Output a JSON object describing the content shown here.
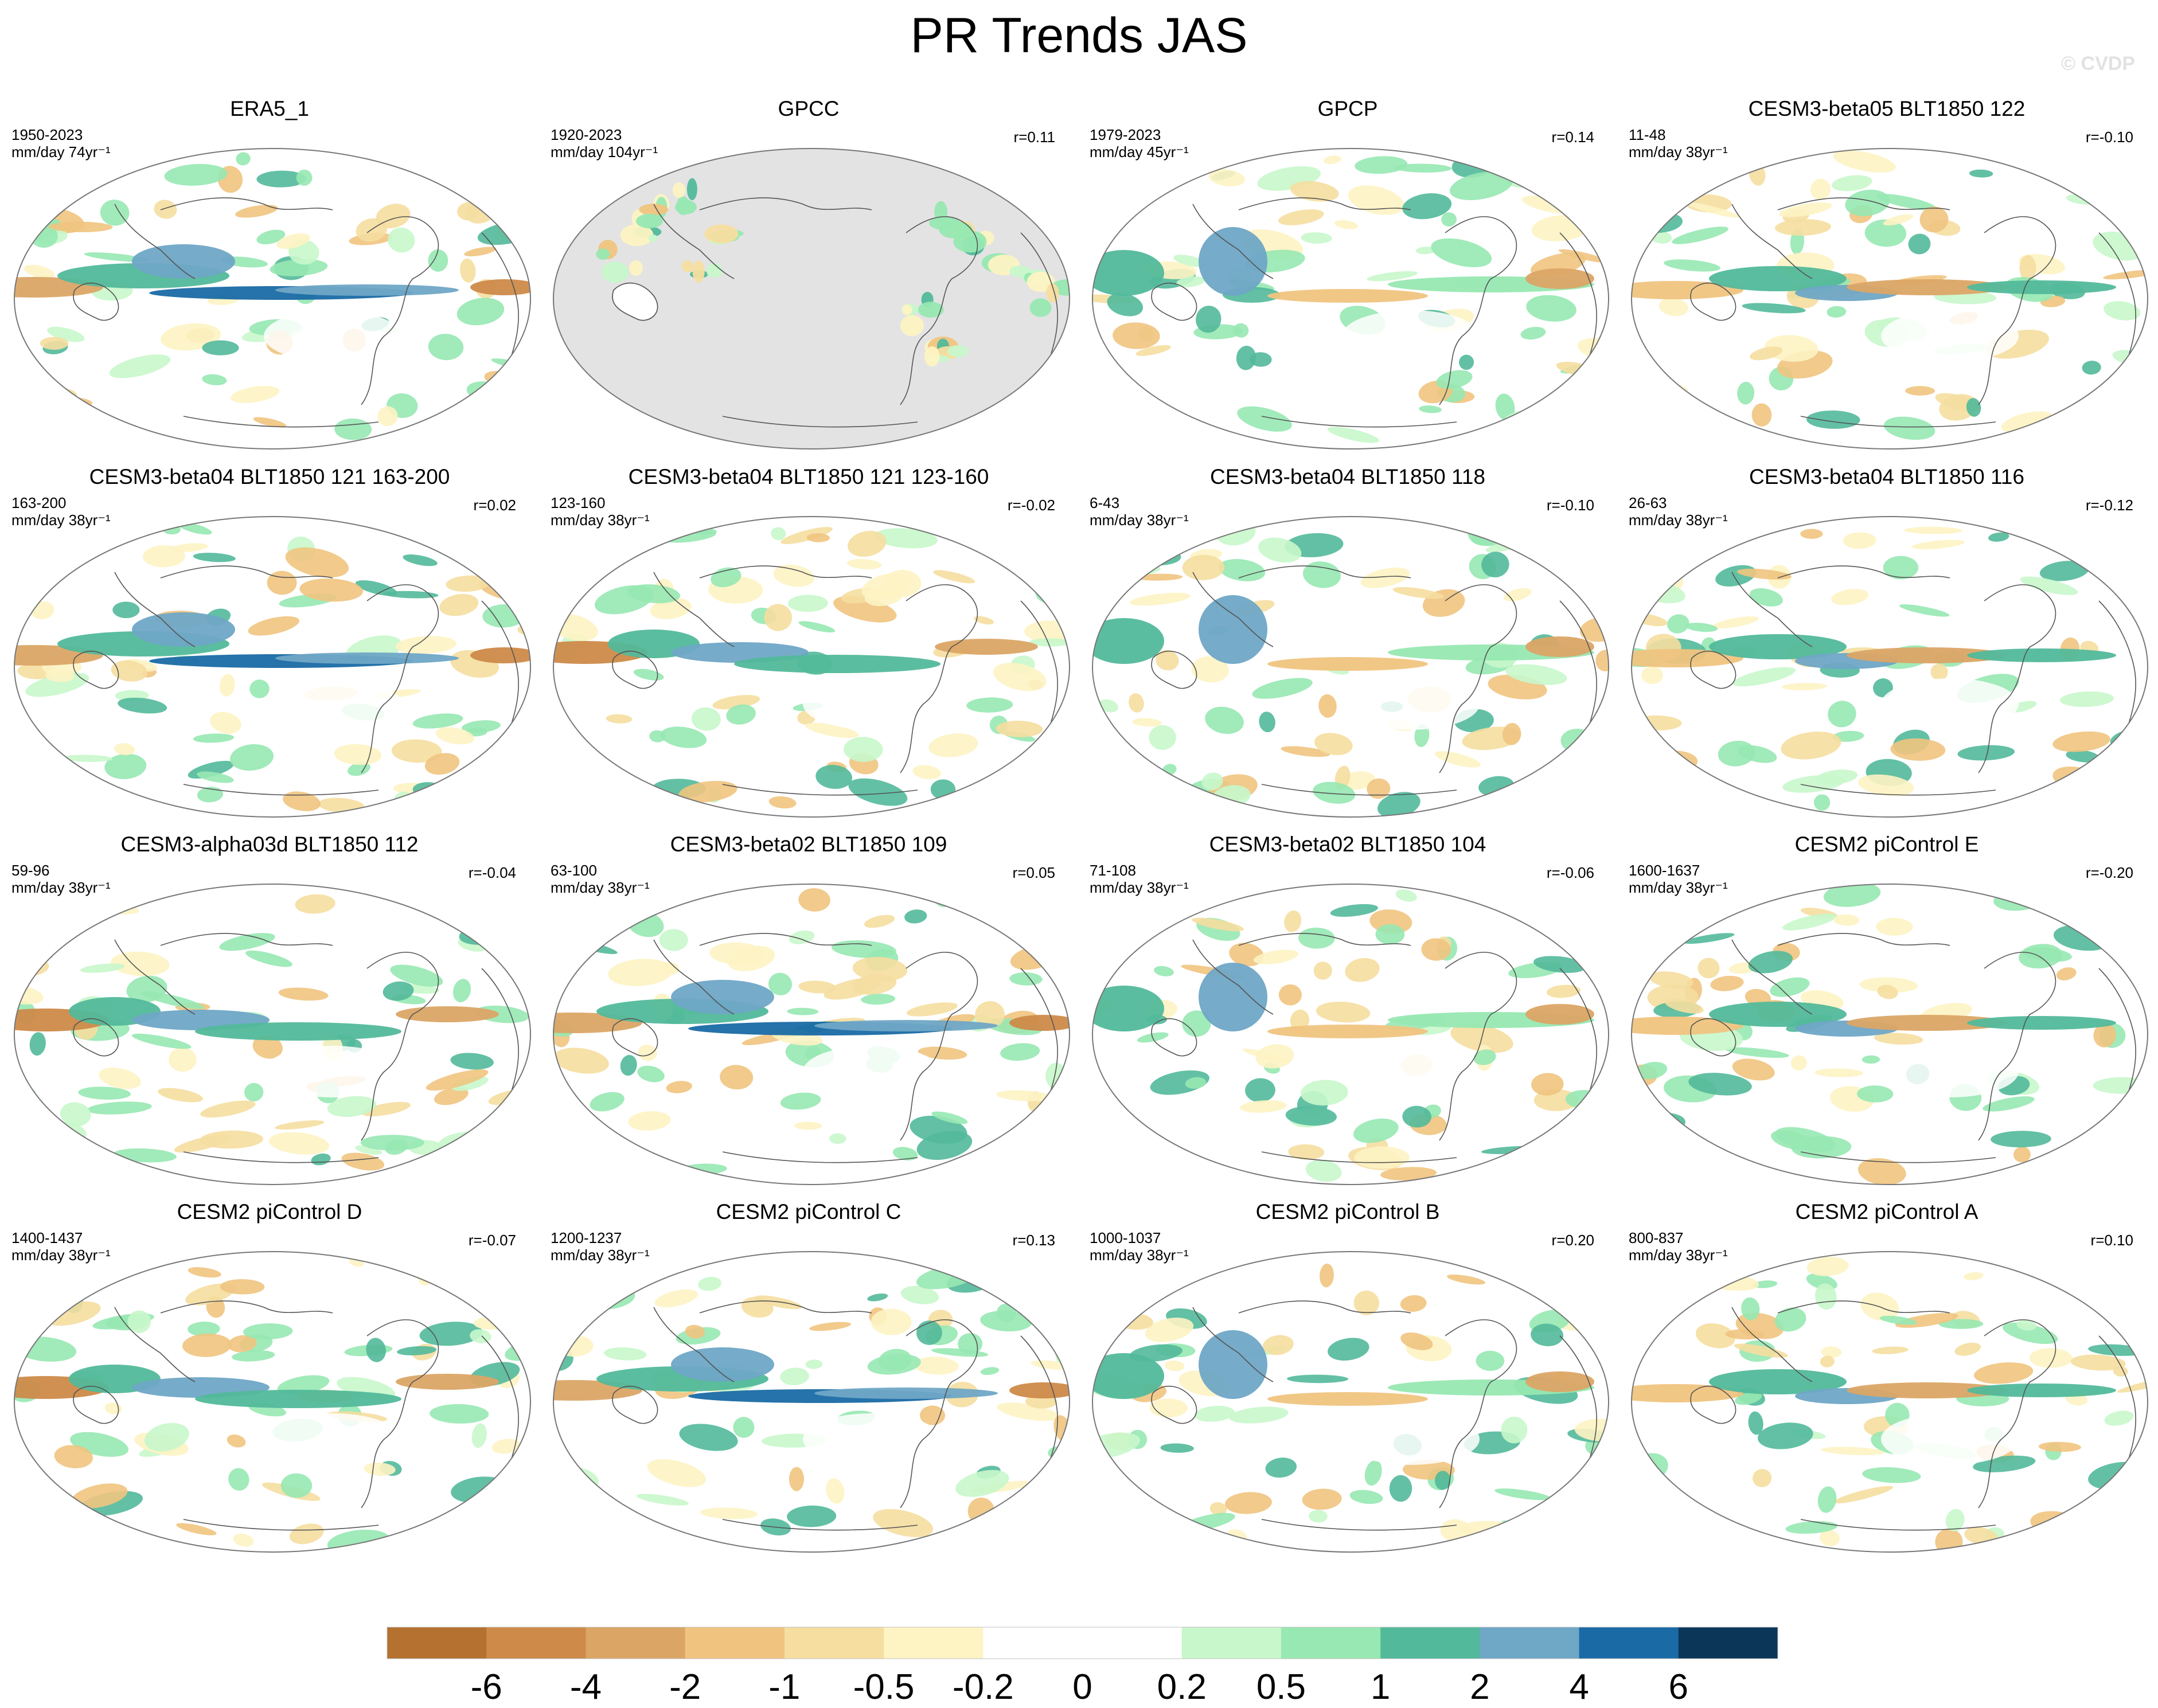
{
  "title": "PR Trends JAS",
  "watermark": "© CVDP",
  "panels": [
    {
      "title": "ERA5_1",
      "years": "1950-2023",
      "units": "mm/day 74yr⁻¹",
      "r": "",
      "pattern": "a",
      "masked": false
    },
    {
      "title": "GPCC",
      "years": "1920-2023",
      "units": "mm/day 104yr⁻¹",
      "r": "r=0.11",
      "pattern": "land",
      "masked": true
    },
    {
      "title": "GPCP",
      "years": "1979-2023",
      "units": "mm/day 45yr⁻¹",
      "r": "r=0.14",
      "pattern": "b",
      "masked": false
    },
    {
      "title": "CESM3-beta05 BLT1850 122",
      "years": "11-48",
      "units": "mm/day 38yr⁻¹",
      "r": "r=-0.10",
      "pattern": "c",
      "masked": false
    },
    {
      "title": "CESM3-beta04 BLT1850 121 163-200",
      "years": "163-200",
      "units": "mm/day 38yr⁻¹",
      "r": "r=0.02",
      "pattern": "a",
      "masked": false
    },
    {
      "title": "CESM3-beta04 BLT1850 121 123-160",
      "years": "123-160",
      "units": "mm/day 38yr⁻¹",
      "r": "r=-0.02",
      "pattern": "d",
      "masked": false
    },
    {
      "title": "CESM3-beta04 BLT1850 118",
      "years": "6-43",
      "units": "mm/day 38yr⁻¹",
      "r": "r=-0.10",
      "pattern": "b",
      "masked": false
    },
    {
      "title": "CESM3-beta04 BLT1850 116",
      "years": "26-63",
      "units": "mm/day 38yr⁻¹",
      "r": "r=-0.12",
      "pattern": "c",
      "masked": false
    },
    {
      "title": "CESM3-alpha03d BLT1850 112",
      "years": "59-96",
      "units": "mm/day 38yr⁻¹",
      "r": "r=-0.04",
      "pattern": "d",
      "masked": false
    },
    {
      "title": "CESM3-beta02 BLT1850 109",
      "years": "63-100",
      "units": "mm/day 38yr⁻¹",
      "r": "r=0.05",
      "pattern": "a",
      "masked": false
    },
    {
      "title": "CESM3-beta02 BLT1850 104",
      "years": "71-108",
      "units": "mm/day 38yr⁻¹",
      "r": "r=-0.06",
      "pattern": "b",
      "masked": false
    },
    {
      "title": "CESM2 piControl E",
      "years": "1600-1637",
      "units": "mm/day 38yr⁻¹",
      "r": "r=-0.20",
      "pattern": "c",
      "masked": false
    },
    {
      "title": "CESM2 piControl D",
      "years": "1400-1437",
      "units": "mm/day 38yr⁻¹",
      "r": "r=-0.07",
      "pattern": "d",
      "masked": false
    },
    {
      "title": "CESM2 piControl C",
      "years": "1200-1237",
      "units": "mm/day 38yr⁻¹",
      "r": "r=0.13",
      "pattern": "a",
      "masked": false
    },
    {
      "title": "CESM2 piControl B",
      "years": "1000-1037",
      "units": "mm/day 38yr⁻¹",
      "r": "r=0.20",
      "pattern": "b",
      "masked": false
    },
    {
      "title": "CESM2 piControl A",
      "years": "800-837",
      "units": "mm/day 38yr⁻¹",
      "r": "r=0.10",
      "pattern": "c",
      "masked": false
    }
  ],
  "colorbar": {
    "colors": [
      "#b5712f",
      "#cd8a49",
      "#dba566",
      "#f0c47f",
      "#f5dea0",
      "#fdf3c3",
      "#ffffff",
      "#ffffff",
      "#c8f7cb",
      "#97e8b2",
      "#52b99a",
      "#6fa7c6",
      "#1a6aa5",
      "#0b3658"
    ],
    "labels": [
      "-6",
      "-4",
      "-2",
      "-1",
      "-0.5",
      "-0.2",
      "0",
      "0.2",
      "0.5",
      "1",
      "2",
      "4",
      "6"
    ]
  }
}
